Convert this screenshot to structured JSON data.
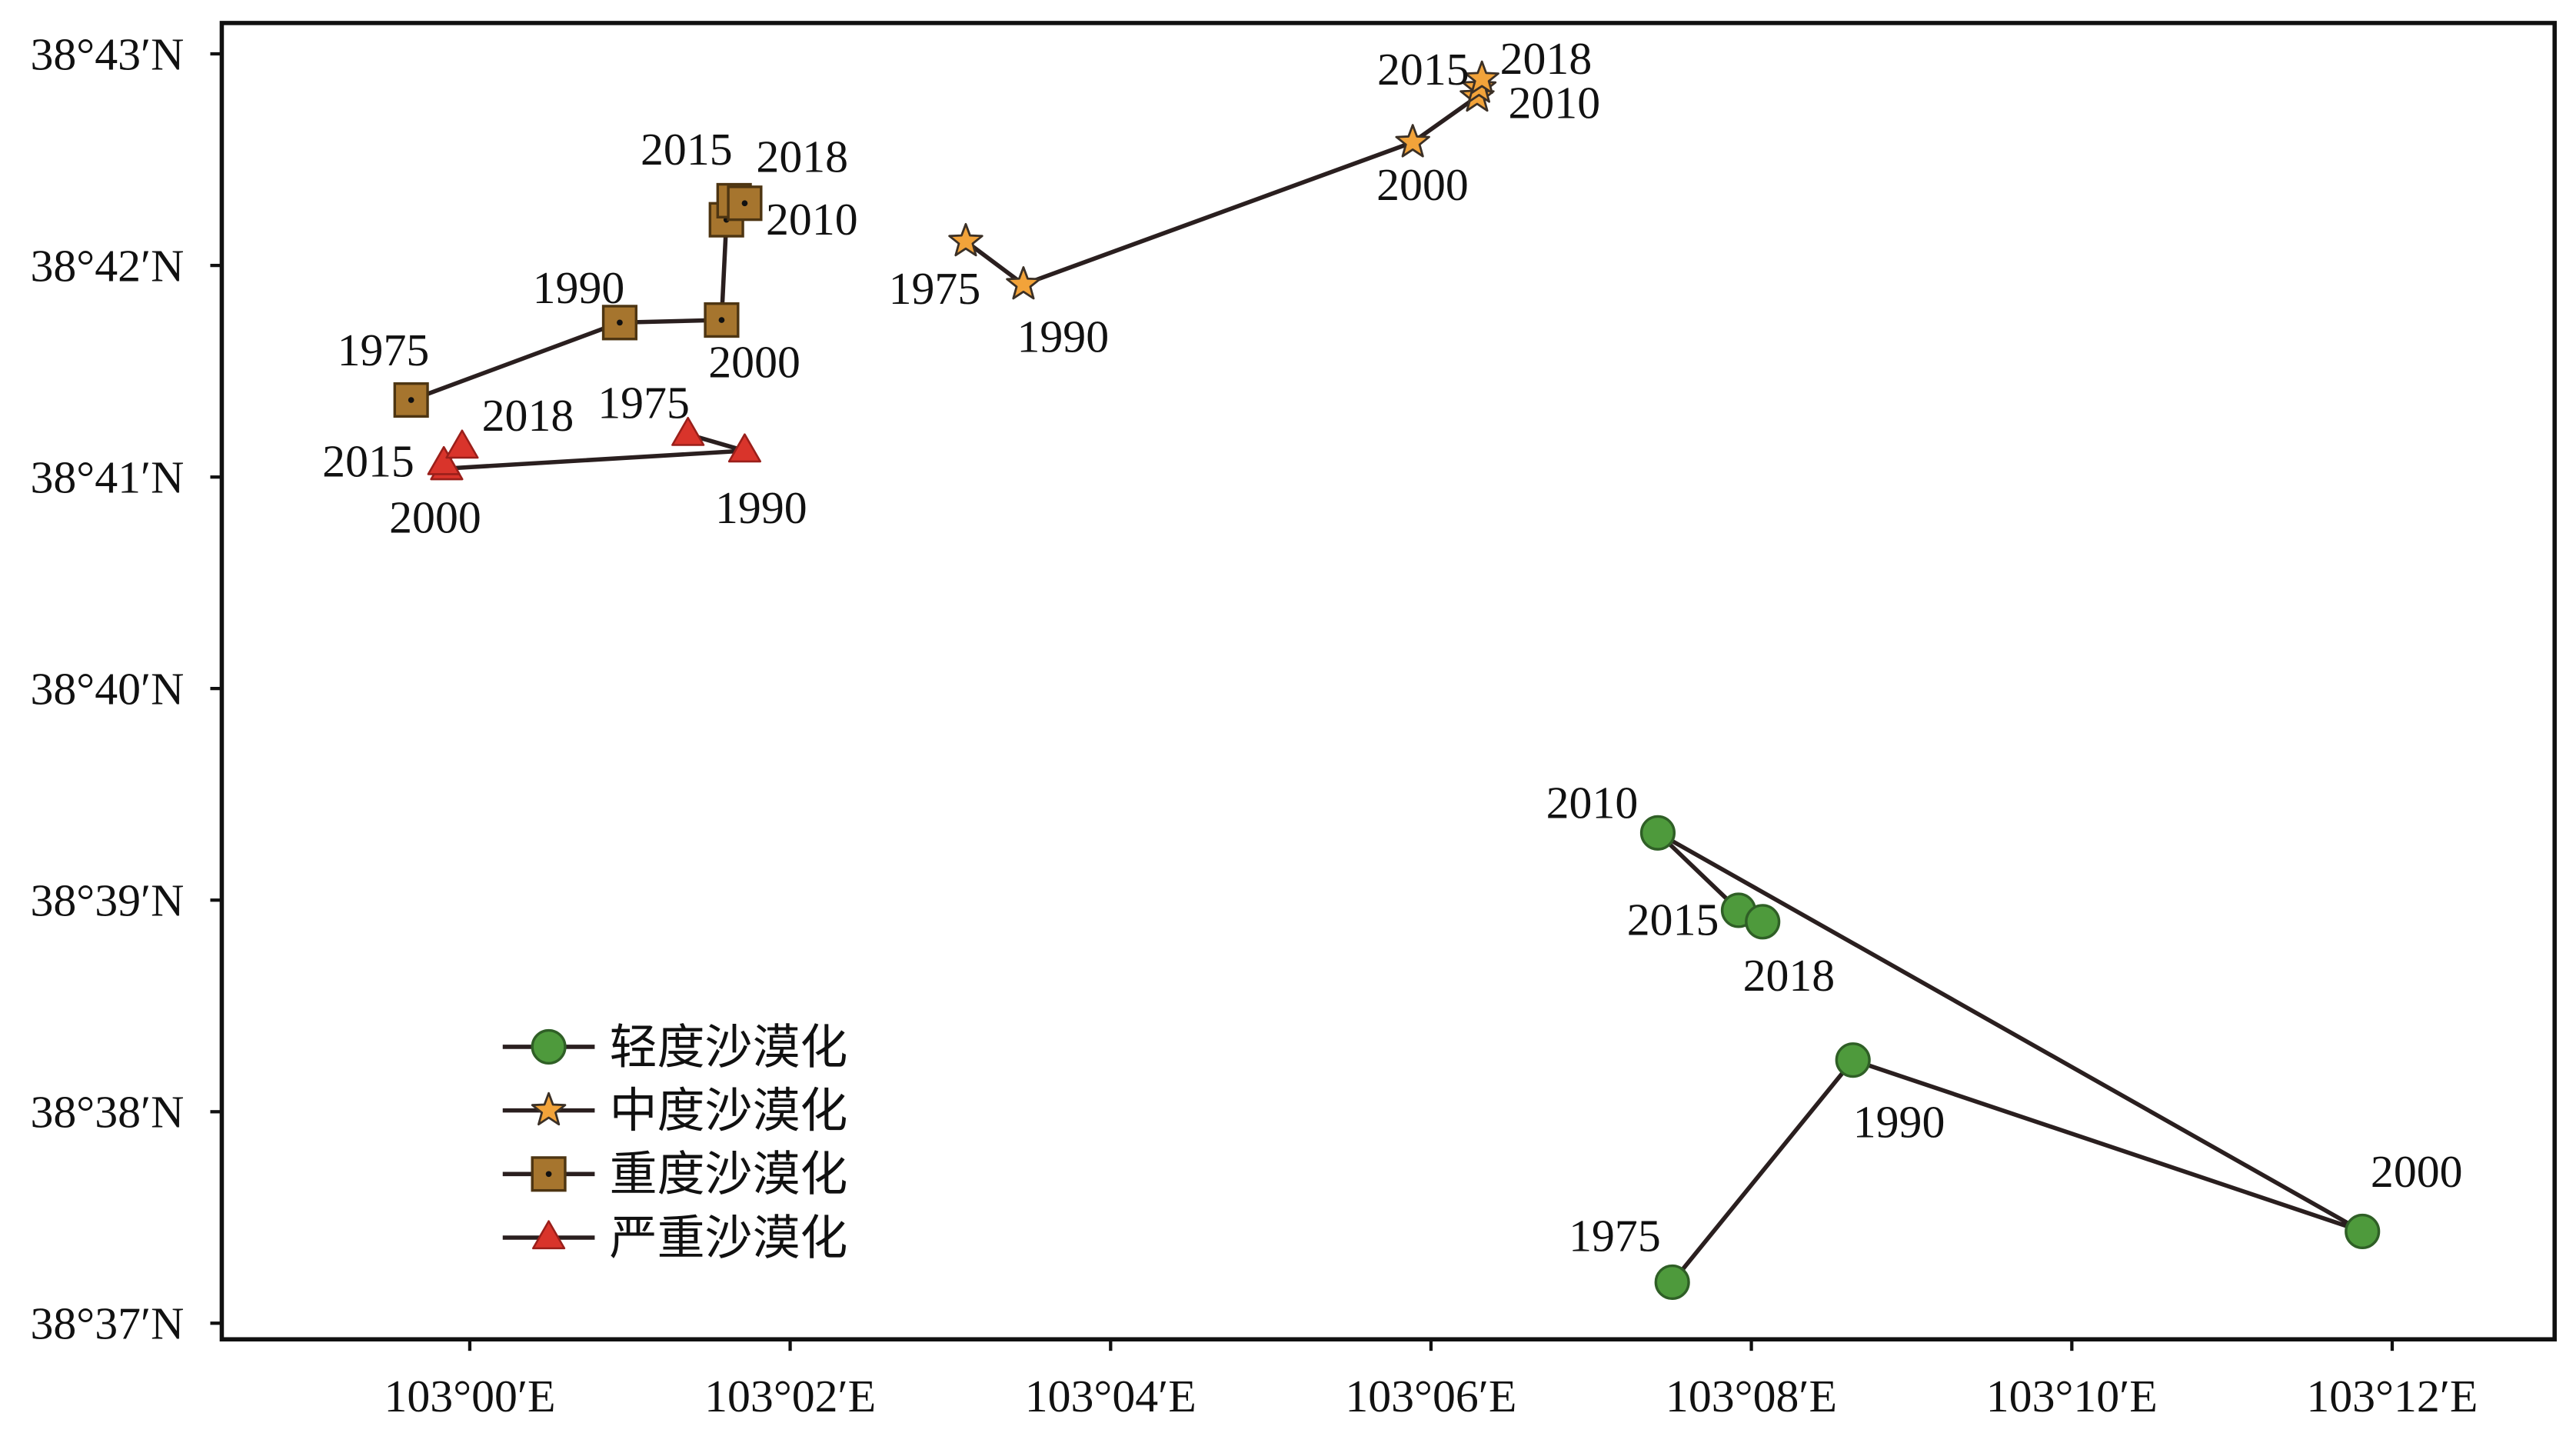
{
  "chart_data": {
    "type": "line",
    "xlim": [
      102.9742,
      103.2169
    ],
    "ylim": [
      38.6154,
      38.7191
    ],
    "grid": false,
    "legend": {
      "placement": "bottom-left"
    },
    "line_color": "#2a1f1f",
    "x_ticks": [
      {
        "value": 103.0,
        "label": "103°00′E"
      },
      {
        "value": 103.03333,
        "label": "103°02′E"
      },
      {
        "value": 103.06667,
        "label": "103°04′E"
      },
      {
        "value": 103.1,
        "label": "103°06′E"
      },
      {
        "value": 103.13333,
        "label": "103°08′E"
      },
      {
        "value": 103.16667,
        "label": "103°10′E"
      },
      {
        "value": 103.2,
        "label": "103°12′E"
      }
    ],
    "y_ticks": [
      {
        "value": 38.61667,
        "label": "38°37′N"
      },
      {
        "value": 38.63333,
        "label": "38°38′N"
      },
      {
        "value": 38.65,
        "label": "38°39′N"
      },
      {
        "value": 38.66667,
        "label": "38°40′N"
      },
      {
        "value": 38.68333,
        "label": "38°41′N"
      },
      {
        "value": 38.7,
        "label": "38°42′N"
      },
      {
        "value": 38.71667,
        "label": "38°43′N"
      }
    ],
    "series": [
      {
        "name": "轻度沙漠化",
        "marker": "circle",
        "color": "#4e9a3c",
        "edge_color": "#2f5f26",
        "points": [
          {
            "label": "1975",
            "x": 103.1251,
            "y": 38.6199
          },
          {
            "label": "1990",
            "x": 103.1439,
            "y": 38.6374
          },
          {
            "label": "2000",
            "x": 103.1969,
            "y": 38.6239
          },
          {
            "label": "2010",
            "x": 103.1236,
            "y": 38.6553
          },
          {
            "label": "2015",
            "x": 103.132,
            "y": 38.6492
          },
          {
            "label": "2018",
            "x": 103.1345,
            "y": 38.6483
          }
        ]
      },
      {
        "name": "中度沙漠化",
        "marker": "star",
        "color": "#f2a33a",
        "edge_color": "#3b3026",
        "points": [
          {
            "label": "1975",
            "x": 103.0516,
            "y": 38.7019
          },
          {
            "label": "1990",
            "x": 103.0576,
            "y": 38.6985
          },
          {
            "label": "2000",
            "x": 103.0981,
            "y": 38.7097
          },
          {
            "label": "2010",
            "x": 103.1048,
            "y": 38.7133
          },
          {
            "label": "2015",
            "x": 103.105,
            "y": 38.714
          },
          {
            "label": "2018",
            "x": 103.1053,
            "y": 38.7147
          }
        ]
      },
      {
        "name": "重度沙漠化",
        "marker": "square",
        "color": "#a6752e",
        "edge_color": "#4d3512",
        "points": [
          {
            "label": "1975",
            "x": 102.9939,
            "y": 38.6894
          },
          {
            "label": "1990",
            "x": 103.0156,
            "y": 38.6955
          },
          {
            "label": "2000",
            "x": 103.0262,
            "y": 38.6957
          },
          {
            "label": "2010",
            "x": 103.0267,
            "y": 38.7036
          },
          {
            "label": "2015",
            "x": 103.0275,
            "y": 38.7051
          },
          {
            "label": "2018",
            "x": 103.0286,
            "y": 38.7049
          }
        ]
      },
      {
        "name": "严重沙漠化",
        "marker": "triangle",
        "color": "#d9342b",
        "edge_color": "#9a1f1a",
        "points": [
          {
            "label": "1975",
            "x": 103.0227,
            "y": 38.6867
          },
          {
            "label": "1990",
            "x": 103.0286,
            "y": 38.6854
          },
          {
            "label": "2000",
            "x": 102.9976,
            "y": 38.684
          },
          {
            "label": "2015",
            "x": 102.9973,
            "y": 38.6844
          },
          {
            "label": "2018",
            "x": 102.9992,
            "y": 38.6857
          }
        ]
      }
    ]
  }
}
